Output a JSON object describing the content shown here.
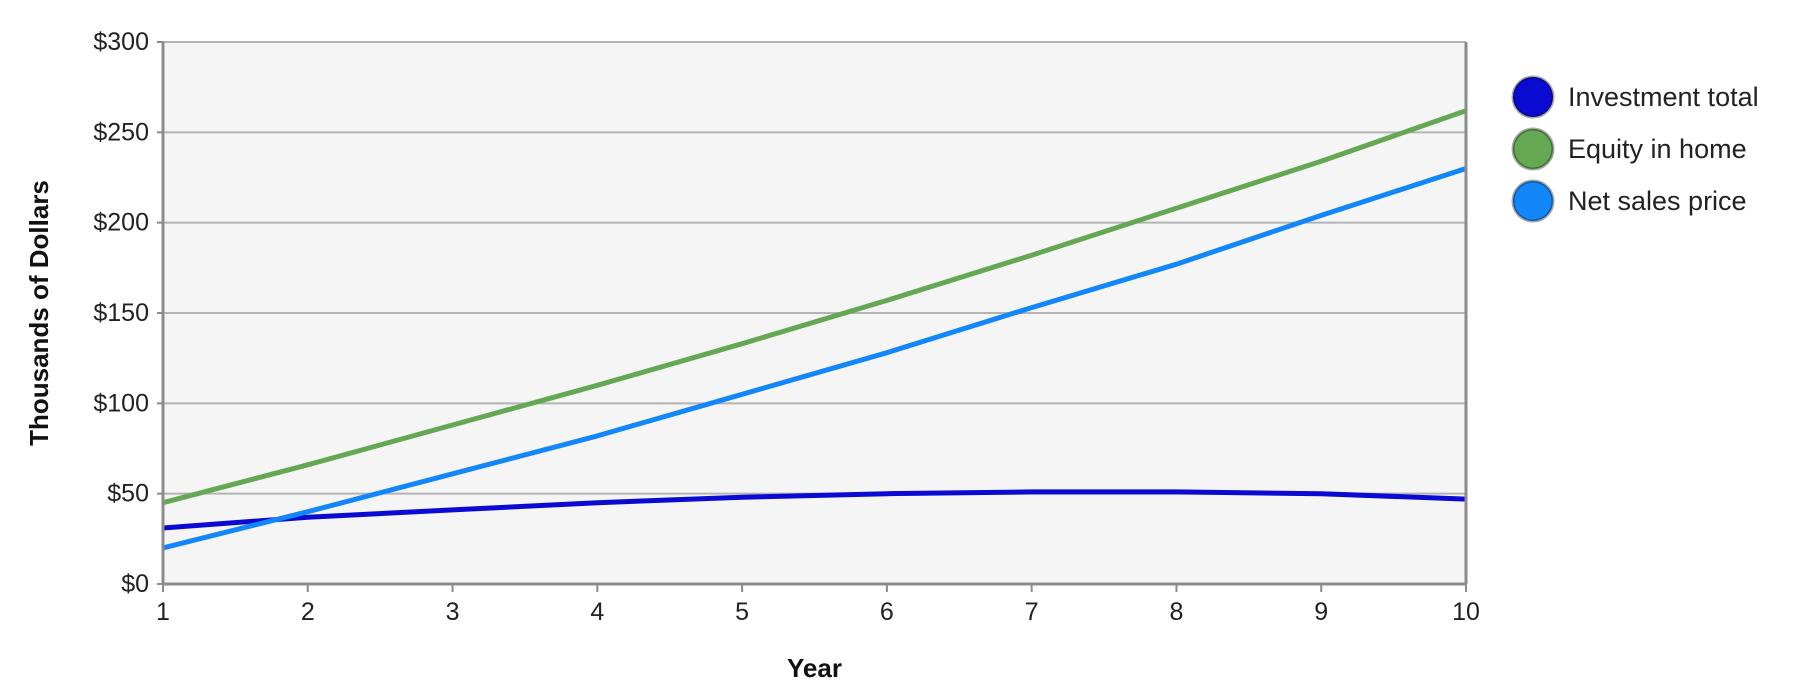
{
  "chart_data": {
    "type": "line",
    "title": "",
    "xlabel": "Year",
    "ylabel": "Thousands of Dollars",
    "x": [
      1,
      2,
      3,
      4,
      5,
      6,
      7,
      8,
      9,
      10
    ],
    "x_tick_labels": [
      "1",
      "2",
      "3",
      "4",
      "5",
      "6",
      "7",
      "8",
      "9",
      "10"
    ],
    "y_ticks": [
      0,
      50,
      100,
      150,
      200,
      250,
      300
    ],
    "y_tick_labels": [
      "$0",
      "$50",
      "$100",
      "$150",
      "$200",
      "$250",
      "$300"
    ],
    "xlim": [
      1,
      10
    ],
    "ylim": [
      0,
      300
    ],
    "grid": "horizontal",
    "legend_position": "right",
    "series": [
      {
        "name": "Investment total",
        "color": "#0a0ad2",
        "values": [
          31,
          37,
          41,
          45,
          48,
          50,
          51,
          51,
          50,
          47
        ]
      },
      {
        "name": "Equity in home",
        "color": "#65a854",
        "values": [
          45,
          66,
          88,
          110,
          133,
          157,
          182,
          208,
          234,
          262
        ]
      },
      {
        "name": "Net sales price",
        "color": "#1387fa",
        "values": [
          20,
          40,
          61,
          82,
          105,
          128,
          153,
          177,
          204,
          230
        ]
      }
    ]
  },
  "colors": {
    "plot_background": "#f5f5f5",
    "grid": "#b4b4b4",
    "axis": "#8c8c8c"
  }
}
